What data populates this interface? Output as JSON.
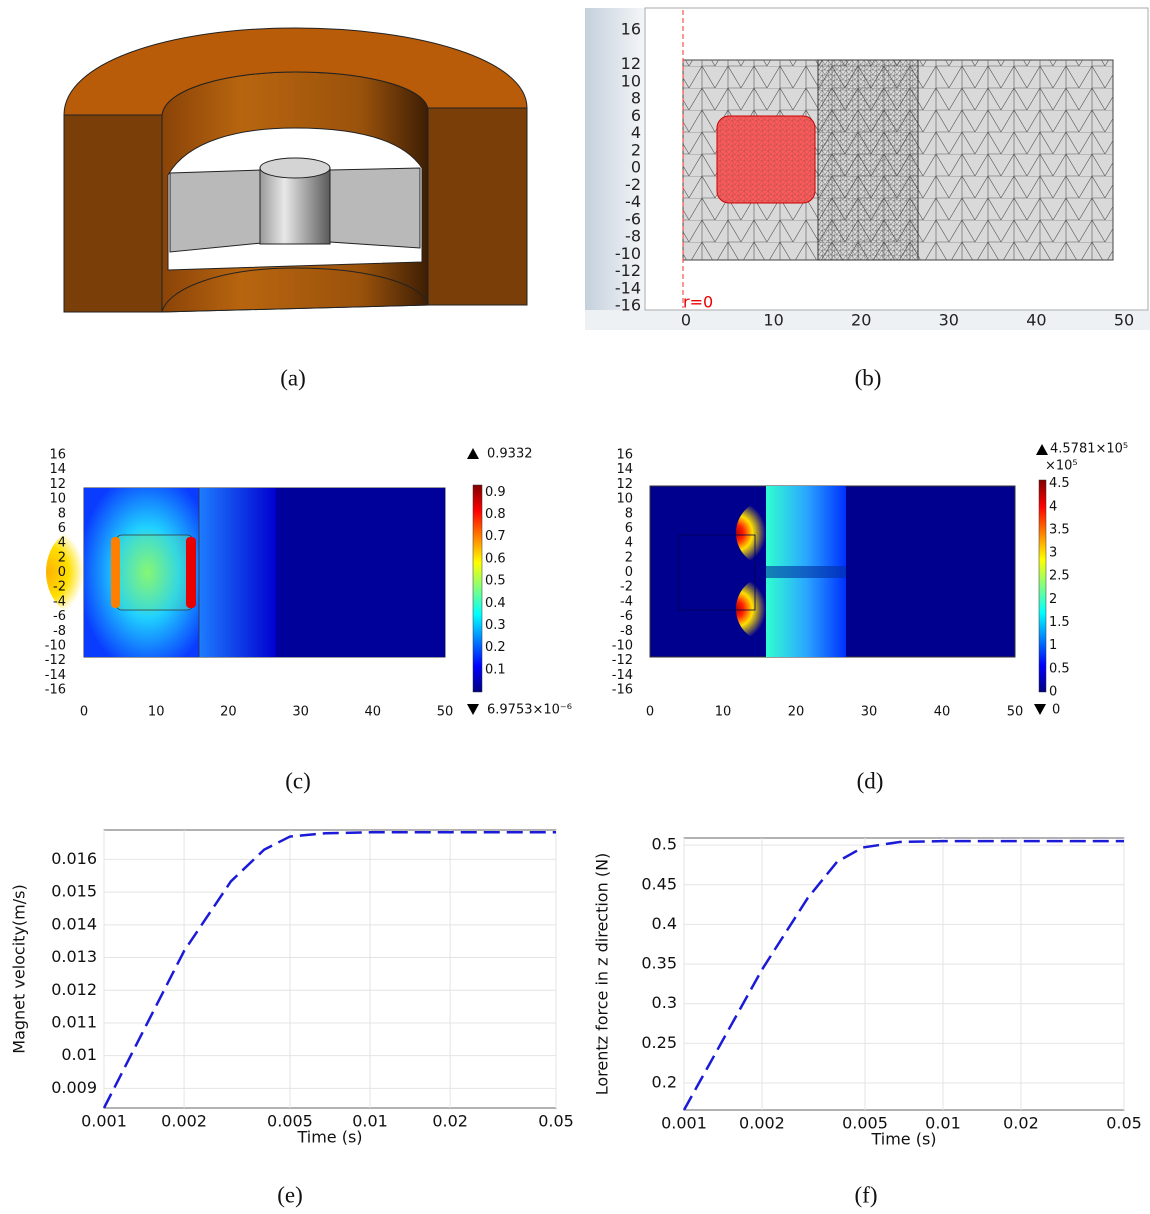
{
  "figure": {
    "panels": [
      {
        "caption": "(a)"
      },
      {
        "caption": "(b)",
        "xticks": [
          0,
          10,
          20,
          30,
          40,
          50
        ],
        "yticks": [
          16,
          12,
          10,
          8,
          6,
          4,
          2,
          0,
          -2,
          -4,
          -6,
          -8,
          -10,
          -12,
          -14,
          -16
        ],
        "annotation": "r=0"
      },
      {
        "caption": "(c)",
        "xticks": [
          0,
          10,
          20,
          30,
          40,
          50
        ],
        "yticks": [
          16,
          14,
          12,
          10,
          8,
          6,
          4,
          2,
          0,
          -2,
          -4,
          -6,
          -8,
          -10,
          -12,
          -14,
          -16
        ],
        "colorbar": {
          "max_label": "0.9332",
          "min_label": "6.9753×10⁻⁶",
          "range": [
            0,
            0.9332
          ],
          "ticks": [
            0.1,
            0.2,
            0.3,
            0.4,
            0.5,
            0.6,
            0.7,
            0.8,
            0.9
          ]
        }
      },
      {
        "caption": "(d)",
        "xticks": [
          0,
          10,
          20,
          30,
          40,
          50
        ],
        "yticks": [
          16,
          14,
          12,
          10,
          8,
          6,
          4,
          2,
          0,
          -2,
          -4,
          -6,
          -8,
          -10,
          -12,
          -14,
          -16
        ],
        "colorbar": {
          "max_label": "4.5781×10⁵",
          "multiplier": "×10⁵",
          "min_label": "0",
          "range": [
            0,
            4.5781
          ],
          "ticks": [
            0,
            0.5,
            1,
            1.5,
            2,
            2.5,
            3,
            3.5,
            4,
            4.5
          ]
        }
      },
      {
        "caption": "(e)"
      },
      {
        "caption": "(f)"
      }
    ]
  },
  "chart_data": [
    {
      "type": "line",
      "xlabel": "Time (s)",
      "ylabel": "Magnet velocity(m/s)",
      "xscale": "log",
      "grid": true,
      "line_style": "dashed",
      "color": "#1a1ad8",
      "x": [
        0.001,
        0.002,
        0.003,
        0.004,
        0.005,
        0.0068,
        0.01,
        0.05
      ],
      "values": [
        0.0084,
        0.0132,
        0.01533,
        0.0163,
        0.0167,
        0.0168,
        0.01683,
        0.01683
      ],
      "xlim": [
        0.001,
        0.05
      ],
      "ylim": [
        0.0084,
        0.0169
      ],
      "xticks": [
        0.001,
        0.002,
        0.005,
        0.01,
        0.02,
        0.05
      ],
      "yticks": [
        0.009,
        0.01,
        0.011,
        0.012,
        0.013,
        0.014,
        0.015,
        0.016
      ]
    },
    {
      "type": "line",
      "xlabel": "Time (s)",
      "ylabel": "Lorentz force in z direction (N)",
      "xscale": "log",
      "grid": true,
      "line_style": "dashed",
      "color": "#1a1ad8",
      "x": [
        0.001,
        0.002,
        0.003,
        0.0039,
        0.0049,
        0.0068,
        0.01,
        0.05
      ],
      "values": [
        0.166,
        0.343,
        0.433,
        0.479,
        0.497,
        0.504,
        0.505,
        0.505
      ],
      "xlim": [
        0.001,
        0.05
      ],
      "ylim": [
        0.166,
        0.509
      ],
      "xticks": [
        0.001,
        0.002,
        0.005,
        0.01,
        0.02,
        0.05
      ],
      "yticks": [
        0.2,
        0.25,
        0.3,
        0.35,
        0.4,
        0.45,
        0.5
      ]
    }
  ]
}
